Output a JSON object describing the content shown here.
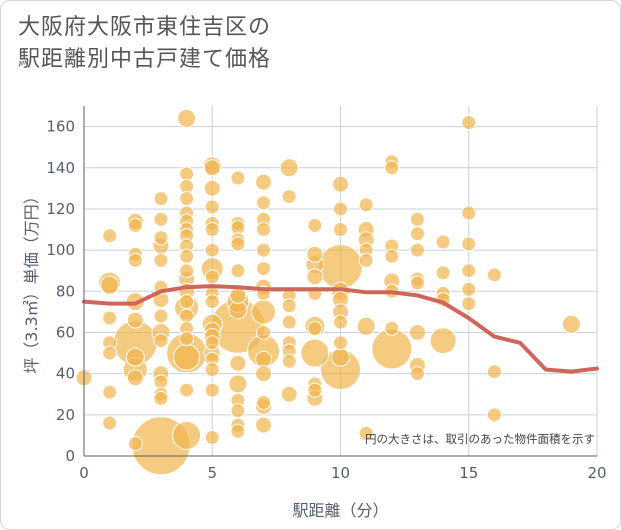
{
  "chart_data": {
    "type": "scatter",
    "title_lines": [
      "大阪府大阪市東住吉区の",
      "駅距離別中古戸建て価格"
    ],
    "xlabel": "駅距離（分）",
    "ylabel": "坪（3.3㎡）単価（万円）",
    "xlim": [
      0,
      20
    ],
    "ylim": [
      0,
      170
    ],
    "xticks": [
      0,
      5,
      10,
      15,
      20
    ],
    "yticks": [
      0,
      20,
      40,
      60,
      80,
      100,
      120,
      140,
      160
    ],
    "grid": true,
    "annotation": "円の大きさは、取引のあった物件面積を示す",
    "colors": {
      "bubble": "#f1b550",
      "bubble_edge": "#ffffff",
      "line": "#d0665a",
      "grid": "#c7d0dc",
      "axis": "#555e6b"
    },
    "points": [
      {
        "x": 0,
        "y": 38,
        "s": 8
      },
      {
        "x": 1,
        "y": 107,
        "s": 7
      },
      {
        "x": 1,
        "y": 84,
        "s": 11
      },
      {
        "x": 1,
        "y": 83,
        "s": 9
      },
      {
        "x": 1,
        "y": 67,
        "s": 7
      },
      {
        "x": 1,
        "y": 55,
        "s": 7
      },
      {
        "x": 1,
        "y": 50,
        "s": 7
      },
      {
        "x": 1,
        "y": 31,
        "s": 7
      },
      {
        "x": 1,
        "y": 16,
        "s": 7
      },
      {
        "x": 2,
        "y": 114,
        "s": 8
      },
      {
        "x": 2,
        "y": 112,
        "s": 7
      },
      {
        "x": 2,
        "y": 98,
        "s": 7
      },
      {
        "x": 2,
        "y": 95,
        "s": 7
      },
      {
        "x": 2,
        "y": 75,
        "s": 9
      },
      {
        "x": 2,
        "y": 66,
        "s": 8
      },
      {
        "x": 2,
        "y": 55,
        "s": 22
      },
      {
        "x": 2,
        "y": 48,
        "s": 9
      },
      {
        "x": 2,
        "y": 42,
        "s": 12
      },
      {
        "x": 2,
        "y": 38,
        "s": 8
      },
      {
        "x": 2,
        "y": 6,
        "s": 7
      },
      {
        "x": 3,
        "y": 125,
        "s": 7
      },
      {
        "x": 3,
        "y": 115,
        "s": 7
      },
      {
        "x": 3,
        "y": 106,
        "s": 7
      },
      {
        "x": 3,
        "y": 102,
        "s": 8
      },
      {
        "x": 3,
        "y": 95,
        "s": 7
      },
      {
        "x": 3,
        "y": 82,
        "s": 7
      },
      {
        "x": 3,
        "y": 76,
        "s": 8
      },
      {
        "x": 3,
        "y": 68,
        "s": 7
      },
      {
        "x": 3,
        "y": 60,
        "s": 9
      },
      {
        "x": 3,
        "y": 56,
        "s": 7
      },
      {
        "x": 3,
        "y": 40,
        "s": 8
      },
      {
        "x": 3,
        "y": 36,
        "s": 7
      },
      {
        "x": 3,
        "y": 30,
        "s": 7
      },
      {
        "x": 3,
        "y": 28,
        "s": 7
      },
      {
        "x": 3,
        "y": 5,
        "s": 29
      },
      {
        "x": 4,
        "y": 164,
        "s": 9
      },
      {
        "x": 4,
        "y": 137,
        "s": 7
      },
      {
        "x": 4,
        "y": 131,
        "s": 7
      },
      {
        "x": 4,
        "y": 125,
        "s": 7
      },
      {
        "x": 4,
        "y": 118,
        "s": 7
      },
      {
        "x": 4,
        "y": 114,
        "s": 7
      },
      {
        "x": 4,
        "y": 110,
        "s": 7
      },
      {
        "x": 4,
        "y": 107,
        "s": 7
      },
      {
        "x": 4,
        "y": 102,
        "s": 7
      },
      {
        "x": 4,
        "y": 97,
        "s": 7
      },
      {
        "x": 4,
        "y": 90,
        "s": 7
      },
      {
        "x": 4,
        "y": 86,
        "s": 8
      },
      {
        "x": 4,
        "y": 80,
        "s": 8
      },
      {
        "x": 4,
        "y": 75,
        "s": 7
      },
      {
        "x": 4,
        "y": 72,
        "s": 12
      },
      {
        "x": 4,
        "y": 68,
        "s": 7
      },
      {
        "x": 4,
        "y": 62,
        "s": 7
      },
      {
        "x": 4,
        "y": 57,
        "s": 7
      },
      {
        "x": 4,
        "y": 50,
        "s": 20
      },
      {
        "x": 4,
        "y": 48,
        "s": 13
      },
      {
        "x": 4,
        "y": 32,
        "s": 7
      },
      {
        "x": 4,
        "y": 10,
        "s": 14
      },
      {
        "x": 5,
        "y": 141,
        "s": 9
      },
      {
        "x": 5,
        "y": 140,
        "s": 8
      },
      {
        "x": 5,
        "y": 130,
        "s": 8
      },
      {
        "x": 5,
        "y": 121,
        "s": 7
      },
      {
        "x": 5,
        "y": 113,
        "s": 7
      },
      {
        "x": 5,
        "y": 110,
        "s": 7
      },
      {
        "x": 5,
        "y": 100,
        "s": 7
      },
      {
        "x": 5,
        "y": 91,
        "s": 11
      },
      {
        "x": 5,
        "y": 87,
        "s": 7
      },
      {
        "x": 5,
        "y": 79,
        "s": 7
      },
      {
        "x": 5,
        "y": 75,
        "s": 7
      },
      {
        "x": 5,
        "y": 64,
        "s": 10
      },
      {
        "x": 5,
        "y": 61,
        "s": 8
      },
      {
        "x": 5,
        "y": 58,
        "s": 8
      },
      {
        "x": 5,
        "y": 55,
        "s": 7
      },
      {
        "x": 5,
        "y": 50,
        "s": 8
      },
      {
        "x": 5,
        "y": 47,
        "s": 7
      },
      {
        "x": 5,
        "y": 42,
        "s": 7
      },
      {
        "x": 5,
        "y": 32,
        "s": 7
      },
      {
        "x": 5,
        "y": 9,
        "s": 7
      },
      {
        "x": 6,
        "y": 135,
        "s": 7
      },
      {
        "x": 6,
        "y": 113,
        "s": 7
      },
      {
        "x": 6,
        "y": 111,
        "s": 7
      },
      {
        "x": 6,
        "y": 105,
        "s": 7
      },
      {
        "x": 6,
        "y": 103,
        "s": 7
      },
      {
        "x": 6,
        "y": 90,
        "s": 7
      },
      {
        "x": 6,
        "y": 78,
        "s": 8
      },
      {
        "x": 6,
        "y": 75,
        "s": 11
      },
      {
        "x": 6,
        "y": 71,
        "s": 9
      },
      {
        "x": 6,
        "y": 63,
        "s": 27
      },
      {
        "x": 6,
        "y": 45,
        "s": 8
      },
      {
        "x": 6,
        "y": 35,
        "s": 9
      },
      {
        "x": 6,
        "y": 27,
        "s": 7
      },
      {
        "x": 6,
        "y": 22,
        "s": 7
      },
      {
        "x": 6,
        "y": 15,
        "s": 7
      },
      {
        "x": 6,
        "y": 12,
        "s": 7
      },
      {
        "x": 7,
        "y": 133,
        "s": 8
      },
      {
        "x": 7,
        "y": 123,
        "s": 7
      },
      {
        "x": 7,
        "y": 115,
        "s": 7
      },
      {
        "x": 7,
        "y": 110,
        "s": 7
      },
      {
        "x": 7,
        "y": 100,
        "s": 7
      },
      {
        "x": 7,
        "y": 91,
        "s": 7
      },
      {
        "x": 7,
        "y": 82,
        "s": 8
      },
      {
        "x": 7,
        "y": 79,
        "s": 7
      },
      {
        "x": 7,
        "y": 70,
        "s": 12
      },
      {
        "x": 7,
        "y": 60,
        "s": 7
      },
      {
        "x": 7,
        "y": 51,
        "s": 16
      },
      {
        "x": 7,
        "y": 47,
        "s": 8
      },
      {
        "x": 7,
        "y": 40,
        "s": 8
      },
      {
        "x": 7,
        "y": 26,
        "s": 7
      },
      {
        "x": 7,
        "y": 24,
        "s": 8
      },
      {
        "x": 7,
        "y": 15,
        "s": 8
      },
      {
        "x": 8,
        "y": 140,
        "s": 9
      },
      {
        "x": 8,
        "y": 126,
        "s": 7
      },
      {
        "x": 8,
        "y": 78,
        "s": 7
      },
      {
        "x": 8,
        "y": 73,
        "s": 7
      },
      {
        "x": 8,
        "y": 65,
        "s": 7
      },
      {
        "x": 8,
        "y": 55,
        "s": 7
      },
      {
        "x": 8,
        "y": 51,
        "s": 7
      },
      {
        "x": 8,
        "y": 46,
        "s": 7
      },
      {
        "x": 8,
        "y": 30,
        "s": 8
      },
      {
        "x": 9,
        "y": 112,
        "s": 7
      },
      {
        "x": 9,
        "y": 98,
        "s": 8
      },
      {
        "x": 9,
        "y": 93,
        "s": 9
      },
      {
        "x": 9,
        "y": 87,
        "s": 8
      },
      {
        "x": 9,
        "y": 79,
        "s": 7
      },
      {
        "x": 9,
        "y": 63,
        "s": 10
      },
      {
        "x": 9,
        "y": 62,
        "s": 7
      },
      {
        "x": 9,
        "y": 50,
        "s": 14
      },
      {
        "x": 9,
        "y": 35,
        "s": 7
      },
      {
        "x": 9,
        "y": 32,
        "s": 7
      },
      {
        "x": 9,
        "y": 28,
        "s": 8
      },
      {
        "x": 10,
        "y": 132,
        "s": 8
      },
      {
        "x": 10,
        "y": 120,
        "s": 7
      },
      {
        "x": 10,
        "y": 110,
        "s": 7
      },
      {
        "x": 10,
        "y": 92,
        "s": 22
      },
      {
        "x": 10,
        "y": 80,
        "s": 9
      },
      {
        "x": 10,
        "y": 76,
        "s": 8
      },
      {
        "x": 10,
        "y": 70,
        "s": 8
      },
      {
        "x": 10,
        "y": 65,
        "s": 7
      },
      {
        "x": 10,
        "y": 55,
        "s": 7
      },
      {
        "x": 10,
        "y": 48,
        "s": 9
      },
      {
        "x": 10,
        "y": 42,
        "s": 20
      },
      {
        "x": 11,
        "y": 122,
        "s": 7
      },
      {
        "x": 11,
        "y": 110,
        "s": 8
      },
      {
        "x": 11,
        "y": 105,
        "s": 8
      },
      {
        "x": 11,
        "y": 100,
        "s": 7
      },
      {
        "x": 11,
        "y": 95,
        "s": 7
      },
      {
        "x": 11,
        "y": 63,
        "s": 9
      },
      {
        "x": 11,
        "y": 11,
        "s": 7
      },
      {
        "x": 12,
        "y": 143,
        "s": 7
      },
      {
        "x": 12,
        "y": 140,
        "s": 7
      },
      {
        "x": 12,
        "y": 102,
        "s": 7
      },
      {
        "x": 12,
        "y": 97,
        "s": 7
      },
      {
        "x": 12,
        "y": 85,
        "s": 8
      },
      {
        "x": 12,
        "y": 80,
        "s": 7
      },
      {
        "x": 12,
        "y": 62,
        "s": 7
      },
      {
        "x": 12,
        "y": 52,
        "s": 20
      },
      {
        "x": 13,
        "y": 115,
        "s": 7
      },
      {
        "x": 13,
        "y": 108,
        "s": 7
      },
      {
        "x": 13,
        "y": 100,
        "s": 7
      },
      {
        "x": 13,
        "y": 86,
        "s": 7
      },
      {
        "x": 13,
        "y": 84,
        "s": 7
      },
      {
        "x": 13,
        "y": 60,
        "s": 8
      },
      {
        "x": 13,
        "y": 44,
        "s": 8
      },
      {
        "x": 13,
        "y": 40,
        "s": 7
      },
      {
        "x": 14,
        "y": 104,
        "s": 7
      },
      {
        "x": 14,
        "y": 89,
        "s": 7
      },
      {
        "x": 14,
        "y": 79,
        "s": 7
      },
      {
        "x": 14,
        "y": 76,
        "s": 7
      },
      {
        "x": 14,
        "y": 56,
        "s": 13
      },
      {
        "x": 15,
        "y": 162,
        "s": 7
      },
      {
        "x": 15,
        "y": 118,
        "s": 7
      },
      {
        "x": 15,
        "y": 103,
        "s": 7
      },
      {
        "x": 15,
        "y": 90,
        "s": 7
      },
      {
        "x": 15,
        "y": 81,
        "s": 7
      },
      {
        "x": 15,
        "y": 74,
        "s": 7
      },
      {
        "x": 16,
        "y": 88,
        "s": 7
      },
      {
        "x": 16,
        "y": 41,
        "s": 7
      },
      {
        "x": 16,
        "y": 20,
        "s": 7
      },
      {
        "x": 19,
        "y": 64,
        "s": 9
      }
    ],
    "trend": {
      "x": [
        0,
        1,
        2,
        3,
        4,
        5,
        6,
        7,
        8,
        9,
        10,
        11,
        12,
        13,
        14,
        15,
        16,
        17,
        18,
        19,
        20
      ],
      "y": [
        75,
        74,
        74,
        80,
        82,
        82.5,
        82,
        81,
        81,
        81,
        81,
        79.5,
        79.5,
        78,
        74.5,
        67,
        58,
        55,
        42,
        41,
        42.5
      ]
    }
  }
}
